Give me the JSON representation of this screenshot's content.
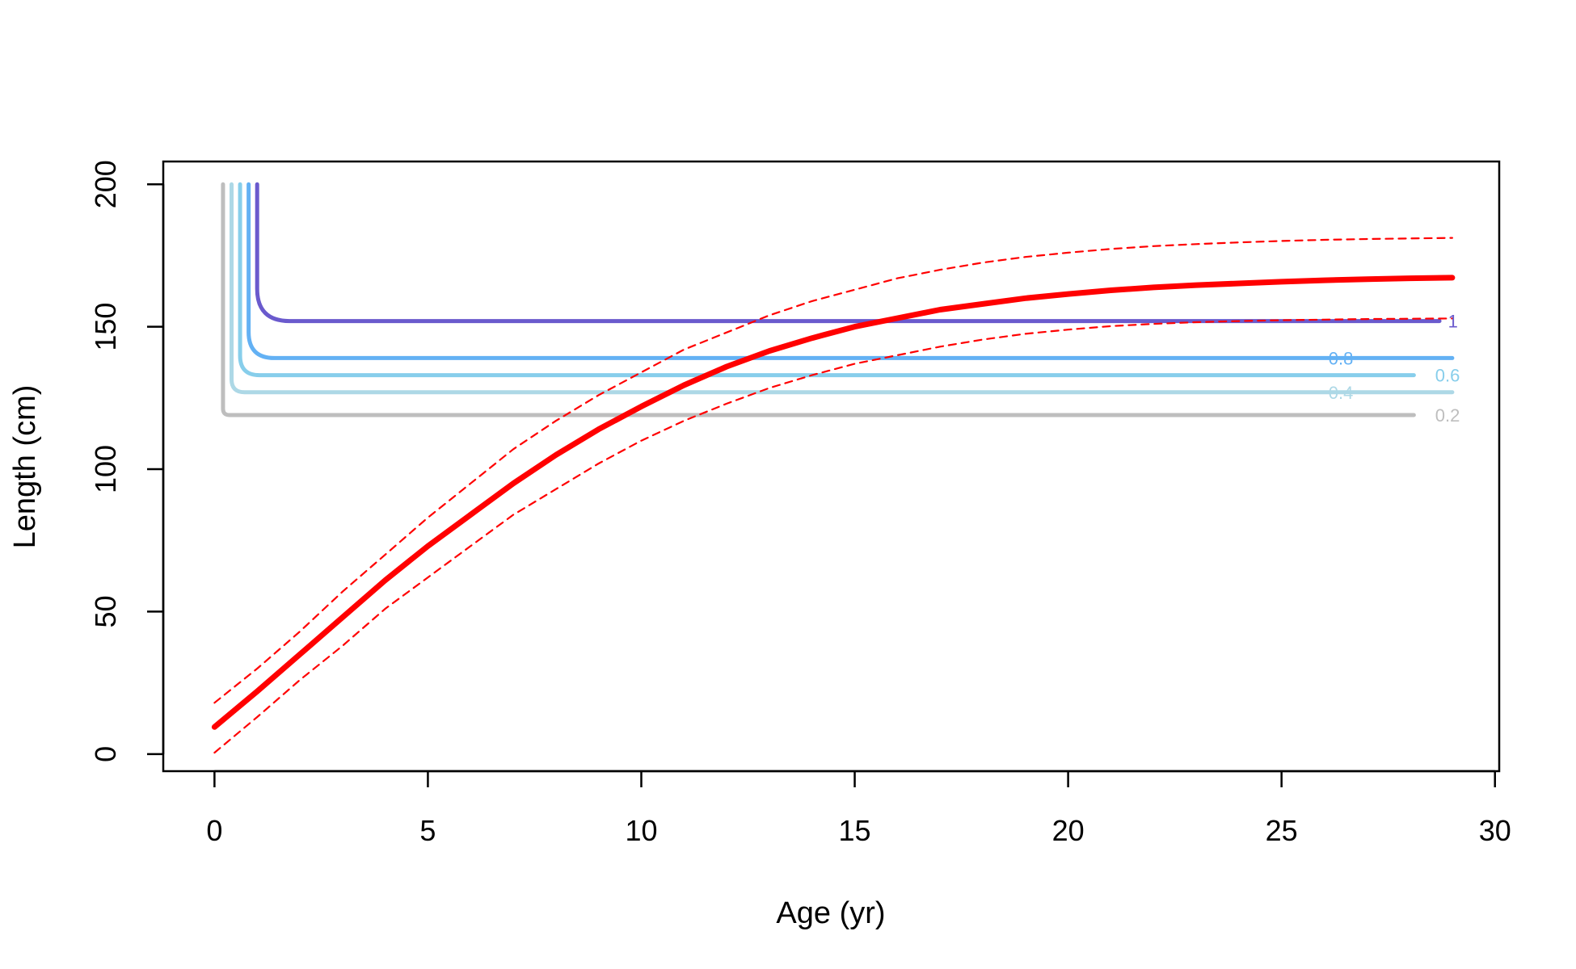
{
  "chart_data": {
    "type": "line",
    "title": "",
    "xlabel": "Age (yr)",
    "ylabel": "Length (cm)",
    "xlim": [
      -1.2,
      30.1
    ],
    "ylim": [
      -6,
      208
    ],
    "x_ticks": [
      0,
      5,
      10,
      15,
      20,
      25,
      30
    ],
    "y_ticks": [
      0,
      50,
      100,
      150,
      200
    ],
    "grid": false,
    "legend": "none",
    "series": [
      {
        "role": "growth-mean",
        "color": "#ff0000",
        "style": "solid",
        "points": [
          [
            0,
            9.5
          ],
          [
            1,
            22
          ],
          [
            2,
            35
          ],
          [
            3,
            48
          ],
          [
            4,
            61
          ],
          [
            5,
            73
          ],
          [
            6,
            84
          ],
          [
            7,
            95
          ],
          [
            8,
            105
          ],
          [
            9,
            114
          ],
          [
            10,
            122
          ],
          [
            11,
            129.5
          ],
          [
            12,
            136
          ],
          [
            13,
            141.5
          ],
          [
            14,
            146
          ],
          [
            15,
            150
          ],
          [
            16,
            153
          ],
          [
            17,
            156
          ],
          [
            18,
            158
          ],
          [
            19,
            160
          ],
          [
            20,
            161.5
          ],
          [
            21,
            162.8
          ],
          [
            22,
            163.8
          ],
          [
            23,
            164.6
          ],
          [
            24,
            165.2
          ],
          [
            25,
            165.8
          ],
          [
            26,
            166.3
          ],
          [
            27,
            166.7
          ],
          [
            28,
            167
          ],
          [
            29,
            167.2
          ]
        ]
      },
      {
        "role": "growth-upper",
        "color": "#ff0000",
        "style": "dashed",
        "points": [
          [
            0,
            18
          ],
          [
            1,
            30
          ],
          [
            2,
            43
          ],
          [
            3,
            57
          ],
          [
            4,
            70
          ],
          [
            5,
            83
          ],
          [
            6,
            95
          ],
          [
            7,
            107
          ],
          [
            8,
            117
          ],
          [
            9,
            126
          ],
          [
            10,
            134
          ],
          [
            11,
            142
          ],
          [
            12,
            148
          ],
          [
            13,
            154
          ],
          [
            14,
            159
          ],
          [
            15,
            163
          ],
          [
            16,
            167
          ],
          [
            17,
            170
          ],
          [
            18,
            172.5
          ],
          [
            19,
            174.5
          ],
          [
            20,
            176
          ],
          [
            21,
            177.3
          ],
          [
            22,
            178.3
          ],
          [
            23,
            179
          ],
          [
            24,
            179.6
          ],
          [
            25,
            180.1
          ],
          [
            26,
            180.5
          ],
          [
            27,
            180.8
          ],
          [
            28,
            181
          ],
          [
            29,
            181.2
          ]
        ]
      },
      {
        "role": "growth-lower",
        "color": "#ff0000",
        "style": "dashed",
        "points": [
          [
            0,
            0.5
          ],
          [
            1,
            13
          ],
          [
            2,
            26
          ],
          [
            3,
            38
          ],
          [
            4,
            51
          ],
          [
            5,
            62
          ],
          [
            6,
            73
          ],
          [
            7,
            84
          ],
          [
            8,
            93
          ],
          [
            9,
            102
          ],
          [
            10,
            110
          ],
          [
            11,
            117
          ],
          [
            12,
            123
          ],
          [
            13,
            128.5
          ],
          [
            14,
            133
          ],
          [
            15,
            137
          ],
          [
            16,
            140
          ],
          [
            17,
            143
          ],
          [
            18,
            145.5
          ],
          [
            19,
            147.5
          ],
          [
            20,
            149
          ],
          [
            21,
            150.2
          ],
          [
            22,
            151
          ],
          [
            23,
            151.6
          ],
          [
            24,
            152
          ],
          [
            25,
            152.3
          ],
          [
            26,
            152.5
          ],
          [
            27,
            152.7
          ],
          [
            28,
            152.8
          ],
          [
            29,
            152.9
          ]
        ]
      }
    ],
    "selectivity_curves": [
      {
        "label": "1",
        "color": "#6a5acd",
        "x_vertical": 1.0,
        "y_level": 152,
        "x_end": 28.7,
        "label_x": 28.9
      },
      {
        "label": "0.8",
        "color": "#63b1f4",
        "x_vertical": 0.8,
        "y_level": 139,
        "x_end": 29,
        "label_x": 26.1
      },
      {
        "label": "0.6",
        "color": "#87ceeb",
        "x_vertical": 0.6,
        "y_level": 133,
        "x_end": 28.1,
        "label_x": 28.6
      },
      {
        "label": "0.4",
        "color": "#add8e6",
        "x_vertical": 0.4,
        "y_level": 127,
        "x_end": 29,
        "label_x": 26.1
      },
      {
        "label": "0.2",
        "color": "#bebebe",
        "x_vertical": 0.2,
        "y_level": 119,
        "x_end": 28.1,
        "label_x": 28.6
      }
    ]
  }
}
